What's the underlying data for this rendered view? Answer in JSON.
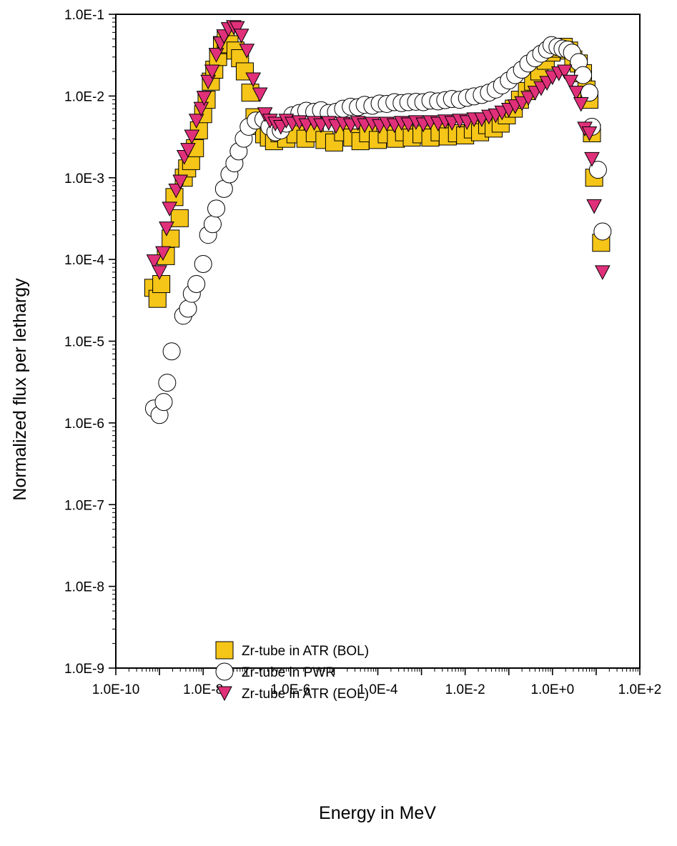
{
  "chart_data": {
    "type": "scatter",
    "xlabel": "Energy in MeV",
    "ylabel": "Normalized flux per lethargy",
    "x_scale": "log",
    "y_scale": "log",
    "xlim": [
      1e-10,
      100
    ],
    "ylim": [
      1e-09,
      0.1
    ],
    "x_tick_labels": [
      "1.0E-10",
      "1.0E-8",
      "1.0E-6",
      "1.0E-4",
      "1.0E-2",
      "1.0E+0",
      "1.0E+2"
    ],
    "y_tick_labels": [
      "1.0E-1",
      "1.0E-2",
      "1.0E-3",
      "1.0E-4",
      "1.0E-5",
      "1.0E-6",
      "1.0E-7",
      "1.0E-8",
      "1.0E-9"
    ],
    "grid": false,
    "legend_position": "bottom-left",
    "series": [
      {
        "name": "Zr-tube in ATR (BOL)",
        "marker": "square",
        "color": "#F5C518",
        "points": [
          [
            7.2e-10,
            4.5e-05
          ],
          [
            9e-10,
            3.3e-05
          ],
          [
            1.1e-09,
            5e-05
          ],
          [
            1.4e-09,
            0.00011
          ],
          [
            1.8e-09,
            0.00018
          ],
          [
            2.2e-09,
            0.00058
          ],
          [
            2.9e-09,
            0.00032
          ],
          [
            3.6e-09,
            0.001
          ],
          [
            4.3e-09,
            0.0013
          ],
          [
            5.3e-09,
            0.0016
          ],
          [
            6.5e-09,
            0.0023
          ],
          [
            8e-09,
            0.0038
          ],
          [
            1e-08,
            0.006
          ],
          [
            1.2e-08,
            0.009
          ],
          [
            1.5e-08,
            0.015
          ],
          [
            1.8e-08,
            0.021
          ],
          [
            2.2e-08,
            0.03
          ],
          [
            2.7e-08,
            0.042
          ],
          [
            3.3e-08,
            0.05
          ],
          [
            4e-08,
            0.043
          ],
          [
            5.5e-08,
            0.036
          ],
          [
            7e-08,
            0.029
          ],
          [
            9e-08,
            0.02
          ],
          [
            1.2e-07,
            0.011
          ],
          [
            1.5e-07,
            0.0055
          ],
          [
            2e-07,
            0.0043
          ],
          [
            2.5e-07,
            0.0034
          ],
          [
            3.2e-07,
            0.0031
          ],
          [
            4.2e-07,
            0.0028
          ],
          [
            5.6e-07,
            0.0035
          ],
          [
            8e-07,
            0.003
          ],
          [
            1.3e-06,
            0.0034
          ],
          [
            2.2e-06,
            0.003
          ],
          [
            3.6e-06,
            0.0035
          ],
          [
            6e-06,
            0.0029
          ],
          [
            1e-05,
            0.0027
          ],
          [
            1.6e-05,
            0.0036
          ],
          [
            2.6e-05,
            0.0031
          ],
          [
            4e-05,
            0.0028
          ],
          [
            6e-05,
            0.0035
          ],
          [
            0.0001,
            0.0029
          ],
          [
            0.00016,
            0.0034
          ],
          [
            0.00026,
            0.003
          ],
          [
            0.0004,
            0.0036
          ],
          [
            0.0006,
            0.0031
          ],
          [
            0.001,
            0.0034
          ],
          [
            0.0016,
            0.0031
          ],
          [
            0.0026,
            0.0036
          ],
          [
            0.004,
            0.0032
          ],
          [
            0.0065,
            0.0035
          ],
          [
            0.01,
            0.0033
          ],
          [
            0.015,
            0.0039
          ],
          [
            0.022,
            0.0036
          ],
          [
            0.032,
            0.0044
          ],
          [
            0.045,
            0.004
          ],
          [
            0.065,
            0.0046
          ],
          [
            0.09,
            0.0058
          ],
          [
            0.13,
            0.007
          ],
          [
            0.18,
            0.009
          ],
          [
            0.26,
            0.0115
          ],
          [
            0.36,
            0.015
          ],
          [
            0.5,
            0.02
          ],
          [
            0.7,
            0.027
          ],
          [
            0.95,
            0.034
          ],
          [
            1.3,
            0.038
          ],
          [
            1.8,
            0.04
          ],
          [
            2.4,
            0.036
          ],
          [
            3,
            0.028
          ],
          [
            4,
            0.025
          ],
          [
            5,
            0.019
          ],
          [
            6,
            0.012
          ],
          [
            7,
            0.009
          ],
          [
            8,
            0.0035
          ],
          [
            9,
            0.001
          ],
          [
            13,
            0.00016
          ]
        ]
      },
      {
        "name": "Zr-tube in PWR",
        "marker": "circle",
        "color": "#FFFFFF",
        "points": [
          [
            7.5e-10,
            1.5e-06
          ],
          [
            1e-09,
            1.25e-06
          ],
          [
            1.25e-09,
            1.8e-06
          ],
          [
            1.5e-09,
            3.1e-06
          ],
          [
            1.9e-09,
            7.5e-06
          ],
          [
            3.5e-09,
            2.05e-05
          ],
          [
            4.5e-09,
            2.5e-05
          ],
          [
            5.5e-09,
            3.8e-05
          ],
          [
            7e-09,
            5e-05
          ],
          [
            1e-08,
            8.8e-05
          ],
          [
            1.3e-08,
            0.0002
          ],
          [
            1.65e-08,
            0.00027
          ],
          [
            2e-08,
            0.00042
          ],
          [
            3e-08,
            0.00073
          ],
          [
            4e-08,
            0.0011
          ],
          [
            5.2e-08,
            0.0015
          ],
          [
            6.5e-08,
            0.0021
          ],
          [
            8.5e-08,
            0.003
          ],
          [
            1.1e-07,
            0.0042
          ],
          [
            1.6e-07,
            0.005
          ],
          [
            2.4e-07,
            0.0052
          ],
          [
            3.3e-07,
            0.0042
          ],
          [
            4.5e-07,
            0.0036
          ],
          [
            6e-07,
            0.0038
          ],
          [
            8e-07,
            0.0046
          ],
          [
            1.1e-06,
            0.0058
          ],
          [
            1.6e-06,
            0.0062
          ],
          [
            2.3e-06,
            0.0066
          ],
          [
            3.5e-06,
            0.0064
          ],
          [
            5e-06,
            0.0067
          ],
          [
            7.5e-06,
            0.0062
          ],
          [
            1.1e-05,
            0.0064
          ],
          [
            1.6e-05,
            0.007
          ],
          [
            2.4e-05,
            0.0074
          ],
          [
            3.5e-05,
            0.0073
          ],
          [
            5e-05,
            0.0078
          ],
          [
            7.5e-05,
            0.0076
          ],
          [
            0.00011,
            0.0081
          ],
          [
            0.00016,
            0.008
          ],
          [
            0.00024,
            0.0084
          ],
          [
            0.00035,
            0.0082
          ],
          [
            0.0005,
            0.0084
          ],
          [
            0.00075,
            0.0085
          ],
          [
            0.0011,
            0.0084
          ],
          [
            0.0016,
            0.0088
          ],
          [
            0.0024,
            0.0086
          ],
          [
            0.0035,
            0.0089
          ],
          [
            0.005,
            0.0092
          ],
          [
            0.0075,
            0.009
          ],
          [
            0.011,
            0.0095
          ],
          [
            0.016,
            0.0099
          ],
          [
            0.024,
            0.0103
          ],
          [
            0.035,
            0.011
          ],
          [
            0.05,
            0.012
          ],
          [
            0.07,
            0.0135
          ],
          [
            0.1,
            0.0155
          ],
          [
            0.14,
            0.018
          ],
          [
            0.2,
            0.021
          ],
          [
            0.28,
            0.025
          ],
          [
            0.4,
            0.029
          ],
          [
            0.55,
            0.033
          ],
          [
            0.75,
            0.037
          ],
          [
            0.95,
            0.042
          ],
          [
            1.3,
            0.04
          ],
          [
            1.7,
            0.038
          ],
          [
            2.2,
            0.037
          ],
          [
            2.8,
            0.034
          ],
          [
            4,
            0.026
          ],
          [
            5,
            0.018
          ],
          [
            7,
            0.011
          ],
          [
            8,
            0.0042
          ],
          [
            11,
            0.00125
          ],
          [
            14,
            0.00022
          ]
        ]
      },
      {
        "name": "Zr-tube in ATR (EOL)",
        "marker": "triangle-down",
        "color": "#E0307A",
        "points": [
          [
            7.5e-10,
            9.5e-05
          ],
          [
            1e-09,
            7e-05
          ],
          [
            1.2e-09,
            0.00012
          ],
          [
            1.45e-09,
            0.00024
          ],
          [
            1.7e-09,
            0.00042
          ],
          [
            2.4e-09,
            0.0007
          ],
          [
            3e-09,
            0.0009
          ],
          [
            3.7e-09,
            0.0018
          ],
          [
            4.5e-09,
            0.0022
          ],
          [
            5.5e-09,
            0.0032
          ],
          [
            7e-09,
            0.005
          ],
          [
            9e-09,
            0.007
          ],
          [
            1.05e-08,
            0.0095
          ],
          [
            1.3e-08,
            0.015
          ],
          [
            1.6e-08,
            0.02
          ],
          [
            2e-08,
            0.032
          ],
          [
            2.5e-08,
            0.044
          ],
          [
            3e-08,
            0.054
          ],
          [
            3.8e-08,
            0.066
          ],
          [
            5e-08,
            0.07
          ],
          [
            6e-08,
            0.068
          ],
          [
            7.5e-08,
            0.055
          ],
          [
            1e-07,
            0.036
          ],
          [
            1.4e-07,
            0.016
          ],
          [
            2e-07,
            0.0105
          ],
          [
            2.6e-07,
            0.006
          ],
          [
            3.4e-07,
            0.005
          ],
          [
            4.5e-07,
            0.0046
          ],
          [
            6e-07,
            0.0042
          ],
          [
            8e-07,
            0.005
          ],
          [
            1.1e-06,
            0.0046
          ],
          [
            1.6e-06,
            0.0048
          ],
          [
            2.3e-06,
            0.0044
          ],
          [
            3.5e-06,
            0.0047
          ],
          [
            5e-06,
            0.0044
          ],
          [
            7.5e-06,
            0.0047
          ],
          [
            1.1e-05,
            0.0043
          ],
          [
            1.6e-05,
            0.0046
          ],
          [
            2.4e-05,
            0.0044
          ],
          [
            3.5e-05,
            0.0047
          ],
          [
            5e-05,
            0.0044
          ],
          [
            7.5e-05,
            0.0046
          ],
          [
            0.00011,
            0.0043
          ],
          [
            0.00016,
            0.0046
          ],
          [
            0.00024,
            0.0044
          ],
          [
            0.00035,
            0.0047
          ],
          [
            0.0005,
            0.0045
          ],
          [
            0.00075,
            0.0048
          ],
          [
            0.0011,
            0.0045
          ],
          [
            0.0016,
            0.0048
          ],
          [
            0.0024,
            0.0046
          ],
          [
            0.0035,
            0.0049
          ],
          [
            0.005,
            0.0047
          ],
          [
            0.0075,
            0.005
          ],
          [
            0.011,
            0.0048
          ],
          [
            0.016,
            0.0052
          ],
          [
            0.024,
            0.0052
          ],
          [
            0.035,
            0.0056
          ],
          [
            0.05,
            0.0058
          ],
          [
            0.07,
            0.0063
          ],
          [
            0.1,
            0.0068
          ],
          [
            0.14,
            0.0075
          ],
          [
            0.2,
            0.0082
          ],
          [
            0.28,
            0.0095
          ],
          [
            0.4,
            0.011
          ],
          [
            0.55,
            0.0125
          ],
          [
            0.75,
            0.0145
          ],
          [
            1,
            0.017
          ],
          [
            1.4,
            0.019
          ],
          [
            1.9,
            0.02
          ],
          [
            2.6,
            0.015
          ],
          [
            3.5,
            0.011
          ],
          [
            4.5,
            0.008
          ],
          [
            5.5,
            0.004
          ],
          [
            7,
            0.0035
          ],
          [
            8,
            0.0017
          ],
          [
            9,
            0.00045
          ],
          [
            14,
            7e-05
          ]
        ]
      }
    ]
  }
}
